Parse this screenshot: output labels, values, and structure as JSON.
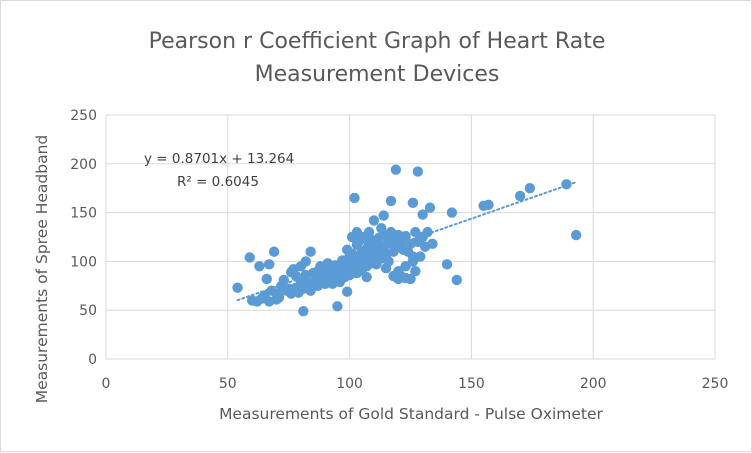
{
  "chart_data": {
    "type": "scatter",
    "title": [
      "Pearson r Coefficient Graph of Heart Rate",
      "Measurement Devices"
    ],
    "xlabel": "Measurements of Gold Standard - Pulse Oximeter",
    "ylabel": "Measurements of Spree Headband",
    "xlim": [
      0,
      250
    ],
    "ylim": [
      0,
      250
    ],
    "x_ticks": [
      0,
      50,
      100,
      150,
      200,
      250
    ],
    "y_ticks": [
      0,
      50,
      100,
      150,
      200,
      250
    ],
    "grid": true,
    "marker_color": "#5b9bd5",
    "trendline": {
      "type": "linear",
      "slope": 0.8701,
      "intercept": 13.264,
      "x_range": [
        54,
        193
      ],
      "style": "dotted",
      "color": "#5b9bd5",
      "equation_label": "y = 0.8701x + 13.264",
      "r2_label": "R² = 0.6045"
    },
    "points": [
      [
        54,
        73
      ],
      [
        59,
        104
      ],
      [
        60,
        60
      ],
      [
        62,
        59
      ],
      [
        63,
        95
      ],
      [
        64,
        62
      ],
      [
        65,
        65
      ],
      [
        66,
        82
      ],
      [
        67,
        97
      ],
      [
        67,
        59
      ],
      [
        68,
        70
      ],
      [
        69,
        110
      ],
      [
        70,
        61
      ],
      [
        70,
        67
      ],
      [
        71,
        63
      ],
      [
        72,
        75
      ],
      [
        73,
        81
      ],
      [
        74,
        70
      ],
      [
        75,
        72
      ],
      [
        76,
        67
      ],
      [
        76,
        89
      ],
      [
        77,
        92
      ],
      [
        78,
        85
      ],
      [
        78,
        73
      ],
      [
        79,
        68
      ],
      [
        80,
        95
      ],
      [
        80,
        79
      ],
      [
        81,
        72
      ],
      [
        81,
        49
      ],
      [
        82,
        86
      ],
      [
        82,
        100
      ],
      [
        83,
        78
      ],
      [
        84,
        110
      ],
      [
        84,
        70
      ],
      [
        85,
        88
      ],
      [
        85,
        74
      ],
      [
        86,
        82
      ],
      [
        87,
        90
      ],
      [
        87,
        75
      ],
      [
        88,
        84
      ],
      [
        88,
        95
      ],
      [
        89,
        79
      ],
      [
        89,
        86
      ],
      [
        90,
        77
      ],
      [
        90,
        93
      ],
      [
        91,
        81
      ],
      [
        91,
        98
      ],
      [
        92,
        88
      ],
      [
        92,
        84
      ],
      [
        93,
        77
      ],
      [
        93,
        91
      ],
      [
        94,
        85
      ],
      [
        94,
        96
      ],
      [
        95,
        82
      ],
      [
        95,
        87
      ],
      [
        96,
        93
      ],
      [
        96,
        79
      ],
      [
        97,
        101
      ],
      [
        97,
        89
      ],
      [
        98,
        84
      ],
      [
        98,
        96
      ],
      [
        99,
        112
      ],
      [
        99,
        91
      ],
      [
        99,
        69
      ],
      [
        100,
        98
      ],
      [
        100,
        86
      ],
      [
        100,
        105
      ],
      [
        101,
        95
      ],
      [
        101,
        108
      ],
      [
        101,
        90
      ],
      [
        102,
        165
      ],
      [
        102,
        101
      ],
      [
        102,
        94
      ],
      [
        103,
        117
      ],
      [
        103,
        97
      ],
      [
        103,
        88
      ],
      [
        104,
        104
      ],
      [
        104,
        121
      ],
      [
        104,
        100
      ],
      [
        105,
        110
      ],
      [
        105,
        96
      ],
      [
        105,
        91
      ],
      [
        106,
        125
      ],
      [
        106,
        103
      ],
      [
        106,
        99
      ],
      [
        107,
        113
      ],
      [
        107,
        106
      ],
      [
        107,
        95
      ],
      [
        108,
        118
      ],
      [
        108,
        102
      ],
      [
        108,
        130
      ],
      [
        109,
        108
      ],
      [
        109,
        98
      ],
      [
        110,
        120
      ],
      [
        110,
        105
      ],
      [
        110,
        115
      ],
      [
        110,
        142
      ],
      [
        111,
        111
      ],
      [
        111,
        102
      ],
      [
        112,
        124
      ],
      [
        112,
        108
      ],
      [
        113,
        134
      ],
      [
        113,
        117
      ],
      [
        113,
        103
      ],
      [
        114,
        147
      ],
      [
        114,
        112
      ],
      [
        115,
        127
      ],
      [
        115,
        107
      ],
      [
        116,
        119
      ],
      [
        116,
        100
      ],
      [
        117,
        162
      ],
      [
        117,
        130
      ],
      [
        118,
        122
      ],
      [
        118,
        110
      ],
      [
        119,
        194
      ],
      [
        119,
        115
      ],
      [
        120,
        127
      ],
      [
        120,
        90
      ],
      [
        121,
        120
      ],
      [
        121,
        85
      ],
      [
        122,
        112
      ],
      [
        123,
        126
      ],
      [
        123,
        95
      ],
      [
        124,
        110
      ],
      [
        125,
        118
      ],
      [
        125,
        82
      ],
      [
        126,
        160
      ],
      [
        126,
        100
      ],
      [
        127,
        130
      ],
      [
        127,
        90
      ],
      [
        128,
        192
      ],
      [
        128,
        120
      ],
      [
        129,
        105
      ],
      [
        130,
        148
      ],
      [
        130,
        125
      ],
      [
        131,
        115
      ],
      [
        132,
        130
      ],
      [
        133,
        155
      ],
      [
        134,
        118
      ],
      [
        140,
        97
      ],
      [
        142,
        150
      ],
      [
        144,
        81
      ],
      [
        155,
        157
      ],
      [
        157,
        158
      ],
      [
        170,
        167
      ],
      [
        174,
        175
      ],
      [
        189,
        179
      ],
      [
        193,
        127
      ],
      [
        95,
        54
      ],
      [
        99,
        95
      ],
      [
        101,
        125
      ],
      [
        103,
        130
      ],
      [
        107,
        84
      ],
      [
        109,
        122
      ],
      [
        111,
        97
      ],
      [
        115,
        93
      ],
      [
        118,
        85
      ],
      [
        120,
        82
      ],
      [
        123,
        83
      ],
      [
        126,
        105
      ]
    ]
  }
}
